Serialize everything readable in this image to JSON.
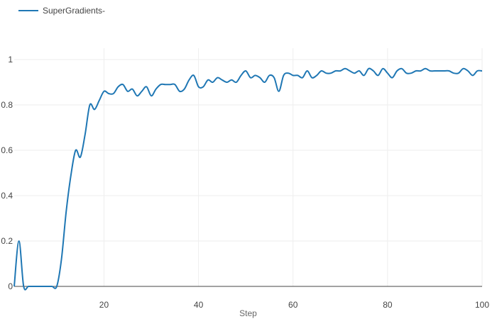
{
  "chart_data": {
    "type": "line",
    "title": "",
    "xlabel": "Step",
    "ylabel": "",
    "xlim": [
      1,
      100
    ],
    "ylim": [
      0,
      1.05
    ],
    "x_ticks": [
      20,
      40,
      60,
      80,
      100
    ],
    "y_ticks": [
      0,
      0.2,
      0.4,
      0.6,
      0.8,
      1
    ],
    "y_tick_labels": [
      "0",
      "0.2",
      "0.4",
      "0.6",
      "0.8",
      "1"
    ],
    "x_tick_labels": [
      "20",
      "40",
      "60",
      "80",
      "100"
    ],
    "grid": true,
    "legend": "top-left",
    "series": [
      {
        "name": "SuperGradients-",
        "color": "#1f77b4",
        "x": [
          1,
          2,
          3,
          4,
          5,
          6,
          7,
          8,
          9,
          10,
          11,
          12,
          13,
          14,
          15,
          16,
          17,
          18,
          19,
          20,
          21,
          22,
          23,
          24,
          25,
          26,
          27,
          28,
          29,
          30,
          31,
          32,
          33,
          34,
          35,
          36,
          37,
          38,
          39,
          40,
          41,
          42,
          43,
          44,
          45,
          46,
          47,
          48,
          49,
          50,
          51,
          52,
          53,
          54,
          55,
          56,
          57,
          58,
          59,
          60,
          61,
          62,
          63,
          64,
          65,
          66,
          67,
          68,
          69,
          70,
          71,
          72,
          73,
          74,
          75,
          76,
          77,
          78,
          79,
          80,
          81,
          82,
          83,
          84,
          85,
          86,
          87,
          88,
          89,
          90,
          91,
          92,
          93,
          94,
          95,
          96,
          97,
          98,
          99,
          100
        ],
        "values": [
          0.0,
          0.2,
          0.0,
          0.0,
          0.0,
          0.0,
          0.0,
          0.0,
          0.0,
          0.0,
          0.12,
          0.33,
          0.49,
          0.6,
          0.57,
          0.67,
          0.8,
          0.78,
          0.82,
          0.86,
          0.85,
          0.85,
          0.88,
          0.89,
          0.86,
          0.87,
          0.84,
          0.86,
          0.88,
          0.84,
          0.87,
          0.89,
          0.89,
          0.89,
          0.89,
          0.86,
          0.87,
          0.91,
          0.93,
          0.88,
          0.88,
          0.91,
          0.9,
          0.92,
          0.91,
          0.9,
          0.91,
          0.9,
          0.93,
          0.95,
          0.92,
          0.93,
          0.92,
          0.9,
          0.93,
          0.92,
          0.86,
          0.93,
          0.94,
          0.93,
          0.93,
          0.92,
          0.95,
          0.92,
          0.93,
          0.95,
          0.94,
          0.94,
          0.95,
          0.95,
          0.96,
          0.95,
          0.94,
          0.95,
          0.93,
          0.96,
          0.95,
          0.93,
          0.96,
          0.94,
          0.92,
          0.95,
          0.96,
          0.94,
          0.94,
          0.95,
          0.95,
          0.96,
          0.95,
          0.95,
          0.95,
          0.95,
          0.95,
          0.94,
          0.94,
          0.96,
          0.95,
          0.93,
          0.95,
          0.95
        ]
      }
    ]
  }
}
